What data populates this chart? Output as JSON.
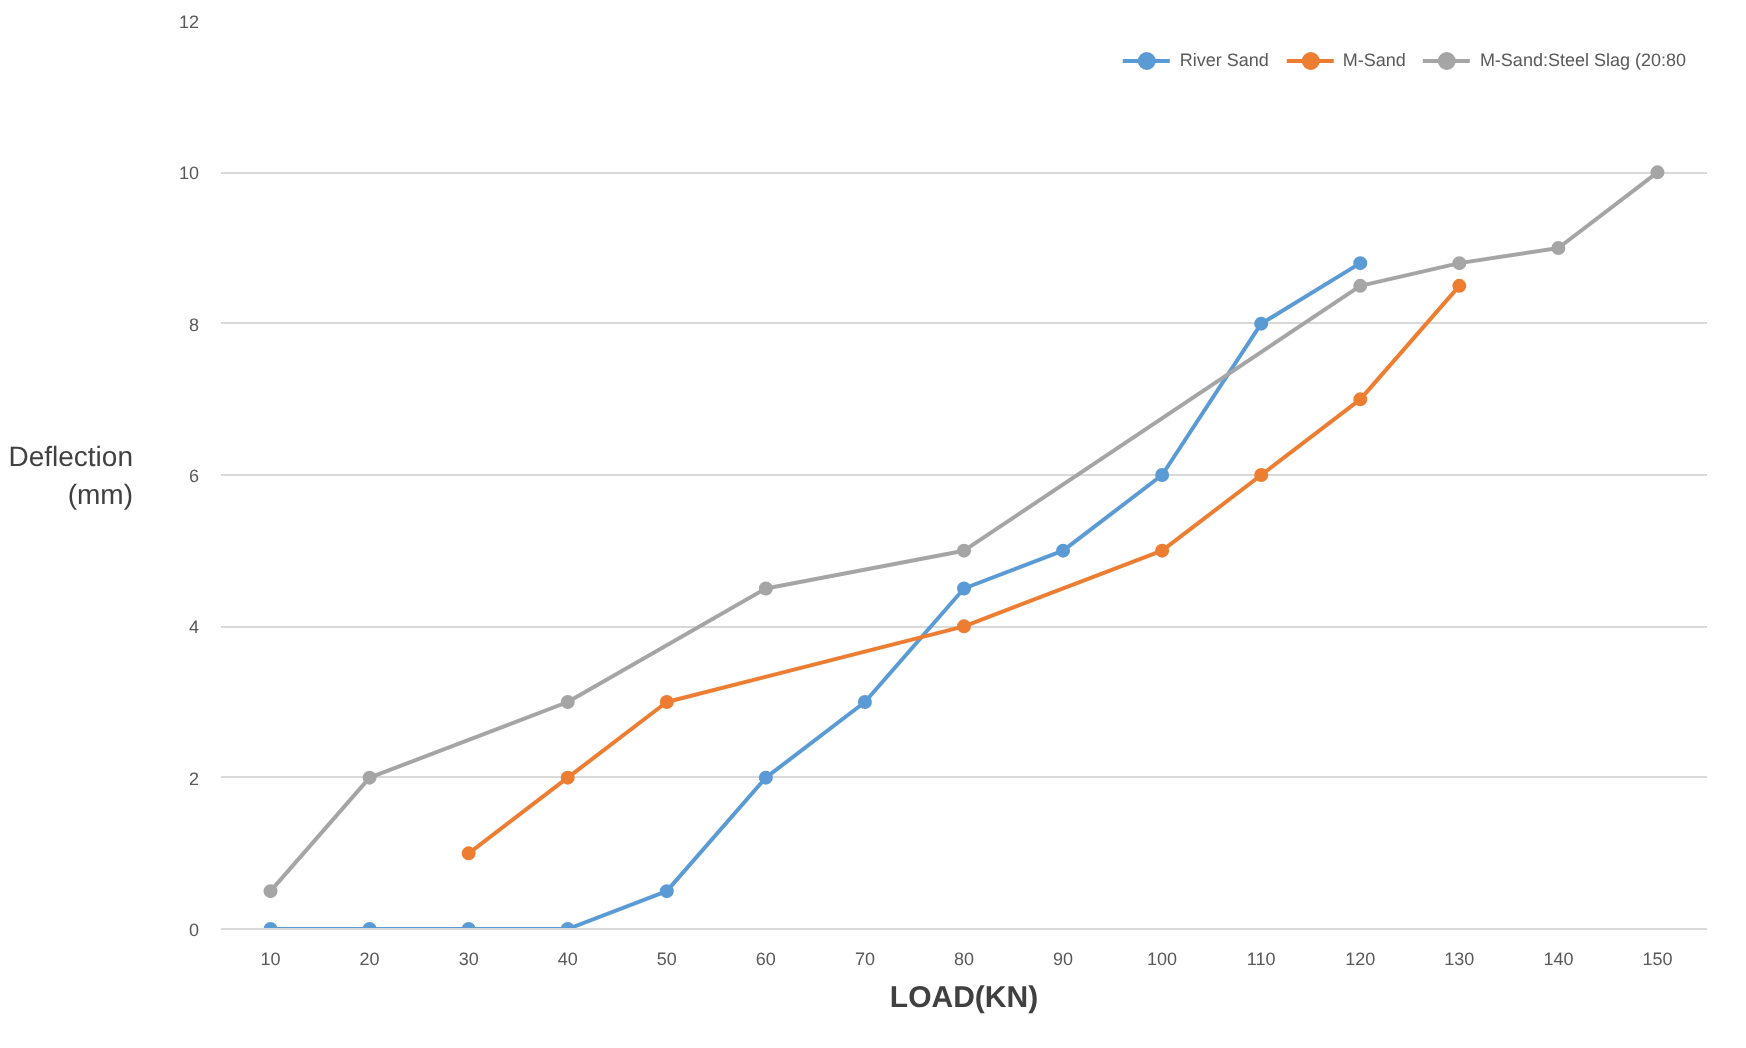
{
  "chart_data": {
    "type": "line",
    "xlabel": "LOAD(KN)",
    "ylabel": "Deflection (mm)",
    "categories": [
      "10",
      "20",
      "30",
      "40",
      "50",
      "60",
      "70",
      "80",
      "90",
      "100",
      "110",
      "120",
      "130",
      "140",
      "150"
    ],
    "series": [
      {
        "name": "River Sand",
        "color": "#5b9bd5",
        "values": [
          0,
          0,
          0,
          0,
          0.5,
          2,
          3,
          4.5,
          5,
          6,
          8,
          8.8,
          null,
          null,
          null
        ]
      },
      {
        "name": "M-Sand",
        "color": "#ed7d31",
        "values": [
          null,
          null,
          1,
          2,
          3,
          null,
          null,
          4,
          null,
          5,
          6,
          7,
          8.5,
          null,
          null
        ]
      },
      {
        "name": "M-Sand:Steel Slag (20:80",
        "color": "#a5a5a5",
        "values": [
          0.5,
          2,
          null,
          3,
          null,
          4.5,
          null,
          5,
          null,
          null,
          null,
          8.5,
          8.8,
          9,
          10
        ]
      }
    ],
    "ylim": [
      0,
      12
    ],
    "yticks": [
      0,
      2,
      4,
      6,
      8,
      10,
      12
    ],
    "grid": "y",
    "legend": "top right",
    "marker": "circle",
    "line_style": "solid"
  }
}
